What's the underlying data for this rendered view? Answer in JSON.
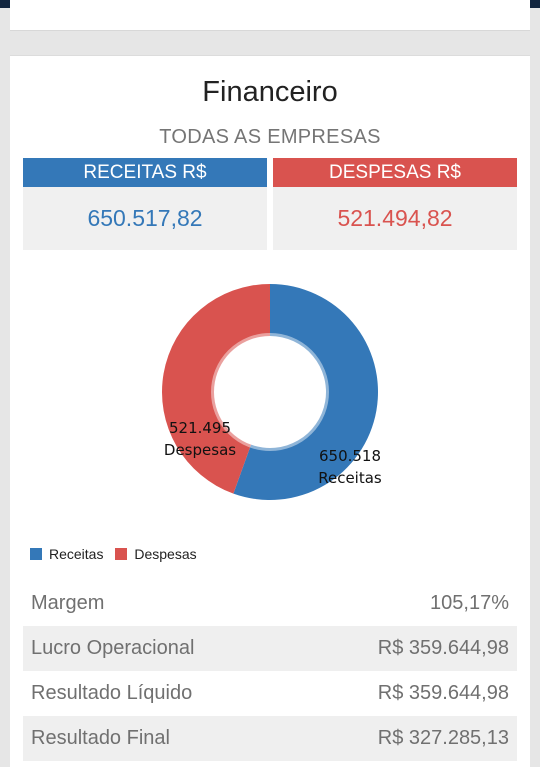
{
  "title": "Financeiro",
  "subtitle": "TODAS AS EMPRESAS",
  "summary": {
    "receitas": {
      "label": "RECEITAS R$",
      "value": "650.517,82"
    },
    "despesas": {
      "label": "DESPESAS R$",
      "value": "521.494,82"
    }
  },
  "chart_data": {
    "type": "pie",
    "categories": [
      "Receitas",
      "Despesas"
    ],
    "values": [
      650.518,
      521.495
    ],
    "value_labels": [
      "650.518",
      "521.495"
    ],
    "colors": [
      "#3478b8",
      "#d9534f"
    ],
    "legend": [
      "Receitas",
      "Despesas"
    ],
    "legend_position": "bottom-left"
  },
  "metrics": [
    {
      "label": "Margem",
      "value": "105,17%"
    },
    {
      "label": "Lucro Operacional",
      "value": "R$ 359.644,98"
    },
    {
      "label": "Resultado Líquido",
      "value": "R$ 359.644,98"
    },
    {
      "label": "Resultado Final",
      "value": "R$ 327.285,13"
    }
  ]
}
